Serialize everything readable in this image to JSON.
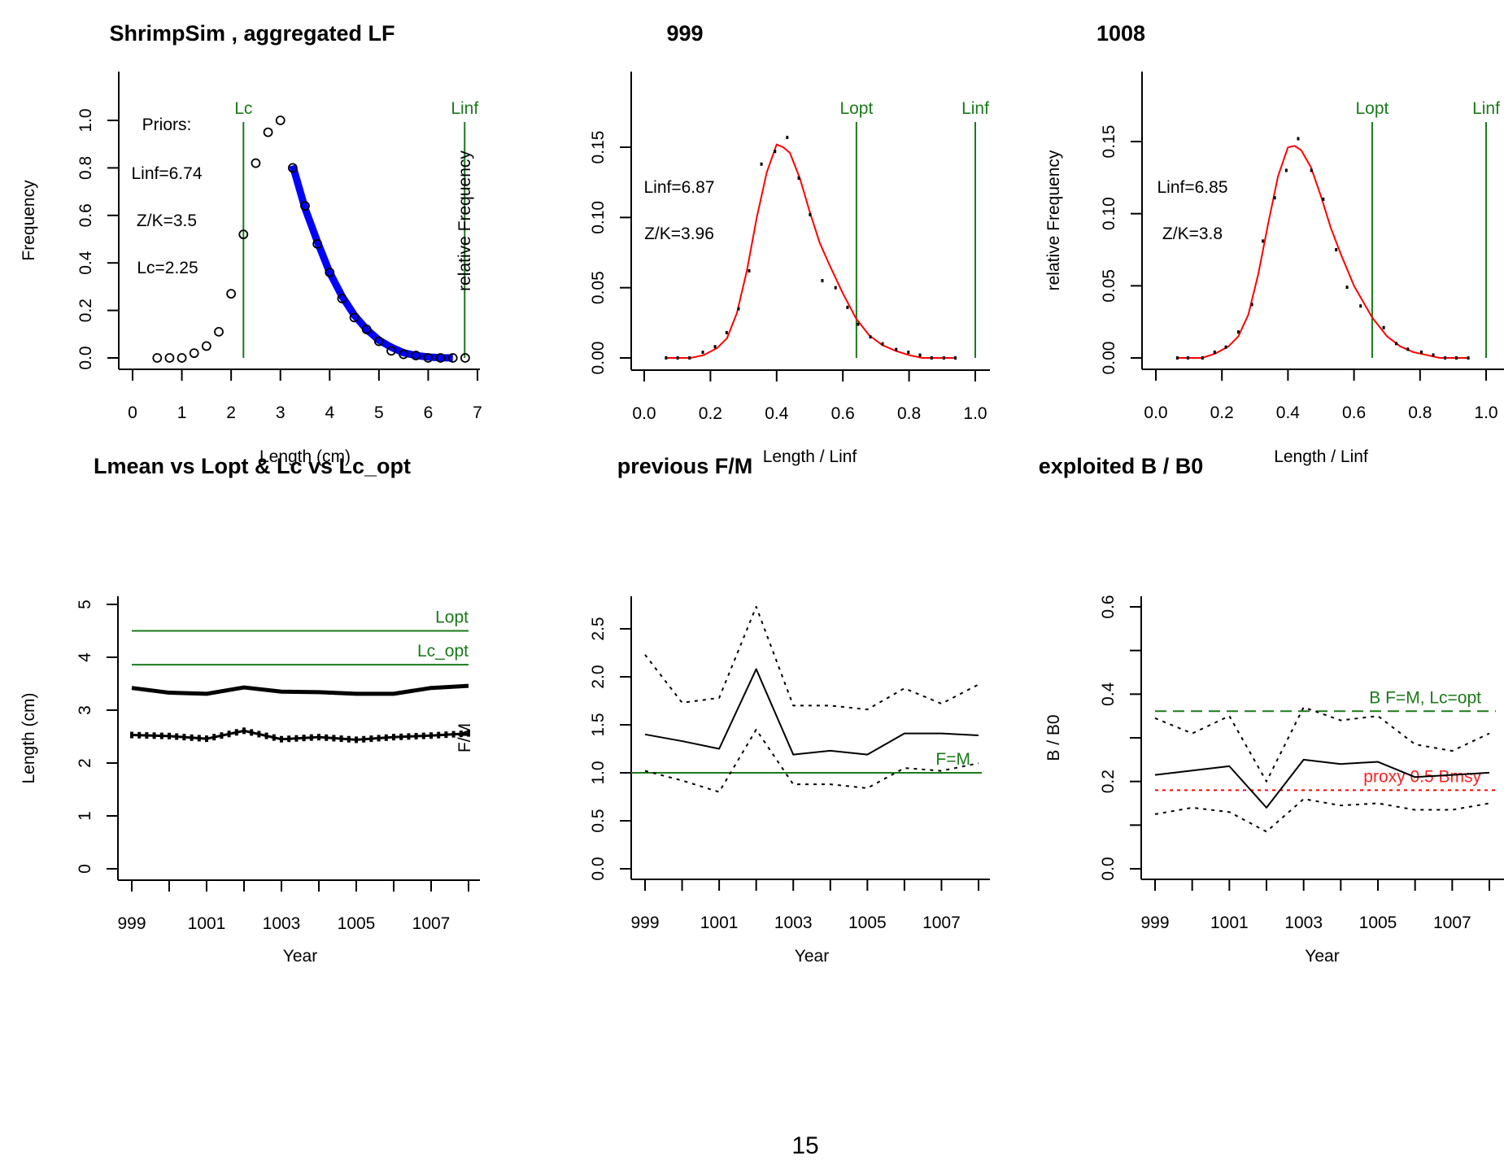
{
  "page": {
    "page_number": "15"
  },
  "colors": {
    "green": "#1a7a1a",
    "red": "#ff0000",
    "blue": "#0000ff",
    "black": "#000000"
  },
  "chart_data": [
    {
      "id": "lf",
      "type": "scatter",
      "title": "ShrimpSim , aggregated LF",
      "xlabel": "Length (cm)",
      "ylabel": "Frequency",
      "xlim": [
        0,
        7
      ],
      "ylim": [
        0,
        1.0
      ],
      "xticks": [
        0,
        1,
        2,
        3,
        4,
        5,
        6,
        7
      ],
      "yticks": [
        0.0,
        0.2,
        0.4,
        0.6,
        0.8,
        1.0
      ],
      "ytick_labels": [
        "0.0",
        "0.2",
        "0.4",
        "0.6",
        "0.8",
        "1.0"
      ],
      "points": {
        "x": [
          0.5,
          0.75,
          1.0,
          1.25,
          1.5,
          1.75,
          2.0,
          2.25,
          2.5,
          2.75,
          3.0,
          3.25,
          3.5,
          3.75,
          4.0,
          4.25,
          4.5,
          4.75,
          5.0,
          5.25,
          5.5,
          5.75,
          6.0,
          6.25,
          6.5,
          6.75
        ],
        "y": [
          0.0,
          0.0,
          0.0,
          0.02,
          0.05,
          0.11,
          0.27,
          0.52,
          0.82,
          0.95,
          1.0,
          0.8,
          0.64,
          0.48,
          0.36,
          0.25,
          0.17,
          0.12,
          0.07,
          0.03,
          0.015,
          0.01,
          0.0,
          0.0,
          0.0,
          0.0
        ]
      },
      "fit_curve": {
        "name": "catch curve fit",
        "color": "#0000ff",
        "x": [
          3.25,
          3.5,
          3.75,
          4.0,
          4.25,
          4.5,
          4.75,
          5.0,
          5.25,
          5.5,
          5.75,
          6.0,
          6.25,
          6.5
        ],
        "y": [
          0.81,
          0.63,
          0.49,
          0.36,
          0.26,
          0.18,
          0.12,
          0.075,
          0.045,
          0.022,
          0.01,
          0.004,
          0.001,
          0.0
        ]
      },
      "vlines": [
        {
          "label": "Lc",
          "x": 2.25,
          "color": "#1a7a1a"
        },
        {
          "label": "Linf",
          "x": 6.74,
          "color": "#1a7a1a"
        }
      ],
      "annotations": [
        "Priors:",
        "Linf=6.74",
        "Z/K=3.5",
        "Lc=2.25"
      ]
    },
    {
      "id": "y999",
      "type": "line",
      "title": "999",
      "xlabel": "Length / Linf",
      "ylabel": "relative Frequency",
      "xlim": [
        0,
        1.0
      ],
      "ylim": [
        0,
        0.15
      ],
      "xticks": [
        0.0,
        0.2,
        0.4,
        0.6,
        0.8,
        1.0
      ],
      "xtick_labels": [
        "0.0",
        "0.2",
        "0.4",
        "0.6",
        "0.8",
        "1.0"
      ],
      "yticks": [
        0.0,
        0.05,
        0.1,
        0.15
      ],
      "ytick_labels": [
        "0.00",
        "0.05",
        "0.10",
        "0.15"
      ],
      "points": {
        "x": [
          0.066,
          0.101,
          0.137,
          0.177,
          0.214,
          0.249,
          0.285,
          0.317,
          0.354,
          0.395,
          0.432,
          0.467,
          0.501,
          0.538,
          0.578,
          0.614,
          0.646,
          0.683,
          0.72,
          0.761,
          0.798,
          0.833,
          0.868,
          0.905,
          0.94
        ],
        "y": [
          0.0,
          0.0,
          0.0,
          0.004,
          0.008,
          0.018,
          0.035,
          0.062,
          0.138,
          0.147,
          0.157,
          0.128,
          0.102,
          0.055,
          0.05,
          0.036,
          0.024,
          0.015,
          0.01,
          0.006,
          0.004,
          0.002,
          0.0,
          0.0,
          0.0
        ]
      },
      "fit_curve": {
        "name": "fit",
        "color": "#ff0000",
        "x": [
          0.066,
          0.14,
          0.18,
          0.22,
          0.25,
          0.28,
          0.31,
          0.34,
          0.37,
          0.4,
          0.42,
          0.44,
          0.47,
          0.5,
          0.53,
          0.56,
          0.6,
          0.64,
          0.68,
          0.72,
          0.76,
          0.8,
          0.84,
          0.94
        ],
        "y": [
          0.0,
          0.0,
          0.002,
          0.007,
          0.014,
          0.032,
          0.062,
          0.1,
          0.132,
          0.152,
          0.15,
          0.146,
          0.128,
          0.104,
          0.082,
          0.066,
          0.046,
          0.028,
          0.016,
          0.009,
          0.005,
          0.002,
          0.0,
          0.0
        ]
      },
      "vlines": [
        {
          "label": "Lopt",
          "x": 0.641,
          "color": "#1a7a1a"
        },
        {
          "label": "Linf",
          "x": 1.0,
          "color": "#1a7a1a"
        }
      ],
      "annotations": [
        "Linf=6.87",
        "Z/K=3.96"
      ]
    },
    {
      "id": "y1008",
      "type": "line",
      "title": "1008",
      "xlabel": "Length / Linf",
      "ylabel": "relative Frequency",
      "xlim": [
        0,
        1.0
      ],
      "ylim": [
        0,
        0.15
      ],
      "xticks": [
        0.0,
        0.2,
        0.4,
        0.6,
        0.8,
        1.0
      ],
      "xtick_labels": [
        "0.0",
        "0.2",
        "0.4",
        "0.6",
        "0.8",
        "1.0"
      ],
      "yticks": [
        0.0,
        0.05,
        0.1,
        0.15
      ],
      "ytick_labels": [
        "0.00",
        "0.05",
        "0.10",
        "0.15"
      ],
      "points": {
        "x": [
          0.065,
          0.097,
          0.141,
          0.178,
          0.212,
          0.25,
          0.291,
          0.324,
          0.36,
          0.395,
          0.431,
          0.471,
          0.507,
          0.546,
          0.579,
          0.62,
          0.69,
          0.728,
          0.763,
          0.804,
          0.84,
          0.876,
          0.91,
          0.946
        ],
        "y": [
          0.0,
          0.0,
          0.0,
          0.004,
          0.0075,
          0.018,
          0.037,
          0.081,
          0.111,
          0.13,
          0.152,
          0.13,
          0.11,
          0.075,
          0.049,
          0.036,
          0.021,
          0.01,
          0.006,
          0.004,
          0.002,
          0.0,
          0.0,
          0.0
        ]
      },
      "fit_curve": {
        "name": "fit",
        "color": "#ff0000",
        "x": [
          0.065,
          0.14,
          0.18,
          0.22,
          0.25,
          0.28,
          0.31,
          0.34,
          0.37,
          0.4,
          0.42,
          0.44,
          0.47,
          0.5,
          0.53,
          0.56,
          0.6,
          0.655,
          0.7,
          0.74,
          0.78,
          0.82,
          0.86,
          0.95
        ],
        "y": [
          0.0,
          0.0,
          0.003,
          0.008,
          0.015,
          0.03,
          0.058,
          0.093,
          0.126,
          0.146,
          0.147,
          0.144,
          0.132,
          0.112,
          0.09,
          0.072,
          0.05,
          0.028,
          0.015,
          0.008,
          0.004,
          0.002,
          0.0,
          0.0
        ]
      },
      "vlines": [
        {
          "label": "Lopt",
          "x": 0.655,
          "color": "#1a7a1a"
        },
        {
          "label": "Linf",
          "x": 1.0,
          "color": "#1a7a1a"
        }
      ],
      "annotations": [
        "Linf=6.85",
        "Z/K=3.8"
      ]
    },
    {
      "id": "lmean",
      "type": "line",
      "title": "Lmean vs Lopt & Lc vs Lc_opt",
      "xlabel": "Year",
      "ylabel": "Length (cm)",
      "xlim": [
        999,
        1008
      ],
      "ylim": [
        0,
        5
      ],
      "xticks": [
        999,
        1000,
        1001,
        1002,
        1003,
        1004,
        1005,
        1006,
        1007,
        1008
      ],
      "xtick_labels": [
        "999",
        "",
        "1001",
        "",
        "1003",
        "",
        "1005",
        "",
        "1007",
        ""
      ],
      "yticks": [
        0,
        1,
        2,
        3,
        4,
        5
      ],
      "ytick_labels": [
        "0",
        "1",
        "2",
        "3",
        "4",
        "5"
      ],
      "x": [
        999,
        1000,
        1001,
        1002,
        1003,
        1004,
        1005,
        1006,
        1007,
        1008
      ],
      "series": [
        {
          "name": "Lmean",
          "style": "solid-thick",
          "values": [
            3.42,
            3.33,
            3.31,
            3.43,
            3.35,
            3.34,
            3.31,
            3.31,
            3.42,
            3.46
          ]
        },
        {
          "name": "Lc",
          "style": "dotted-markers",
          "values": [
            2.53,
            2.51,
            2.46,
            2.61,
            2.45,
            2.49,
            2.44,
            2.49,
            2.52,
            2.56
          ]
        }
      ],
      "hlines": [
        {
          "label": "Lopt",
          "y": 4.5,
          "color": "#1a7a1a"
        },
        {
          "label": "Lc_opt",
          "y": 3.86,
          "color": "#1a7a1a"
        }
      ]
    },
    {
      "id": "fm",
      "type": "line",
      "title": "previous F/M",
      "xlabel": "Year",
      "ylabel": "F/M",
      "xlim": [
        999,
        1008
      ],
      "ylim": [
        0,
        2.5
      ],
      "xticks": [
        999,
        1000,
        1001,
        1002,
        1003,
        1004,
        1005,
        1006,
        1007,
        1008
      ],
      "xtick_labels": [
        "999",
        "",
        "1001",
        "",
        "1003",
        "",
        "1005",
        "",
        "1007",
        ""
      ],
      "yticks": [
        0.0,
        0.5,
        1.0,
        1.5,
        2.0,
        2.5
      ],
      "ytick_labels": [
        "0.0",
        "0.5",
        "1.0",
        "1.5",
        "2.0",
        "2.5"
      ],
      "x": [
        999,
        1000,
        1001,
        1002,
        1003,
        1004,
        1005,
        1006,
        1007,
        1008
      ],
      "series": [
        {
          "name": "F/M median",
          "style": "solid",
          "values": [
            1.4,
            1.33,
            1.25,
            2.08,
            1.19,
            1.23,
            1.19,
            1.41,
            1.41,
            1.39
          ]
        },
        {
          "name": "upper CI",
          "style": "dotted",
          "values": [
            2.23,
            1.73,
            1.78,
            2.73,
            1.7,
            1.7,
            1.66,
            1.88,
            1.72,
            1.92
          ]
        },
        {
          "name": "lower CI",
          "style": "dotted",
          "values": [
            1.02,
            0.92,
            0.8,
            1.45,
            0.88,
            0.88,
            0.84,
            1.05,
            1.02,
            1.1
          ]
        }
      ],
      "hlines": [
        {
          "label": "F=M",
          "y": 1.0,
          "color": "#1a7a1a"
        }
      ]
    },
    {
      "id": "bb0",
      "type": "line",
      "title": "exploited B / B0",
      "xlabel": "Year",
      "ylabel": "B / B0",
      "xlim": [
        999,
        1008
      ],
      "ylim": [
        0,
        0.6
      ],
      "xticks": [
        999,
        1000,
        1001,
        1002,
        1003,
        1004,
        1005,
        1006,
        1007,
        1008
      ],
      "xtick_labels": [
        "999",
        "",
        "1001",
        "",
        "1003",
        "",
        "1005",
        "",
        "1007",
        ""
      ],
      "yticks": [
        0.0,
        0.1,
        0.2,
        0.3,
        0.4,
        0.5,
        0.6
      ],
      "ytick_labels": [
        "0.0",
        "",
        "0.2",
        "",
        "0.4",
        "",
        "0.6"
      ],
      "x": [
        999,
        1000,
        1001,
        1002,
        1003,
        1004,
        1005,
        1006,
        1007,
        1008
      ],
      "series": [
        {
          "name": "B/B0 median",
          "style": "solid",
          "values": [
            0.215,
            0.225,
            0.235,
            0.14,
            0.25,
            0.24,
            0.245,
            0.21,
            0.215,
            0.22
          ]
        },
        {
          "name": "upper CI",
          "style": "dotted",
          "values": [
            0.345,
            0.31,
            0.35,
            0.2,
            0.37,
            0.34,
            0.35,
            0.285,
            0.27,
            0.31
          ]
        },
        {
          "name": "lower CI",
          "style": "dotted",
          "values": [
            0.125,
            0.14,
            0.13,
            0.085,
            0.16,
            0.145,
            0.15,
            0.135,
            0.135,
            0.15
          ]
        }
      ],
      "hlines": [
        {
          "label": "B F=M, Lc=opt",
          "y": 0.361,
          "color": "#1a7a1a",
          "style": "dashed"
        },
        {
          "label": "proxy 0.5 Bmsy",
          "y": 0.18,
          "color": "#ff0000",
          "style": "dotted"
        }
      ]
    }
  ]
}
